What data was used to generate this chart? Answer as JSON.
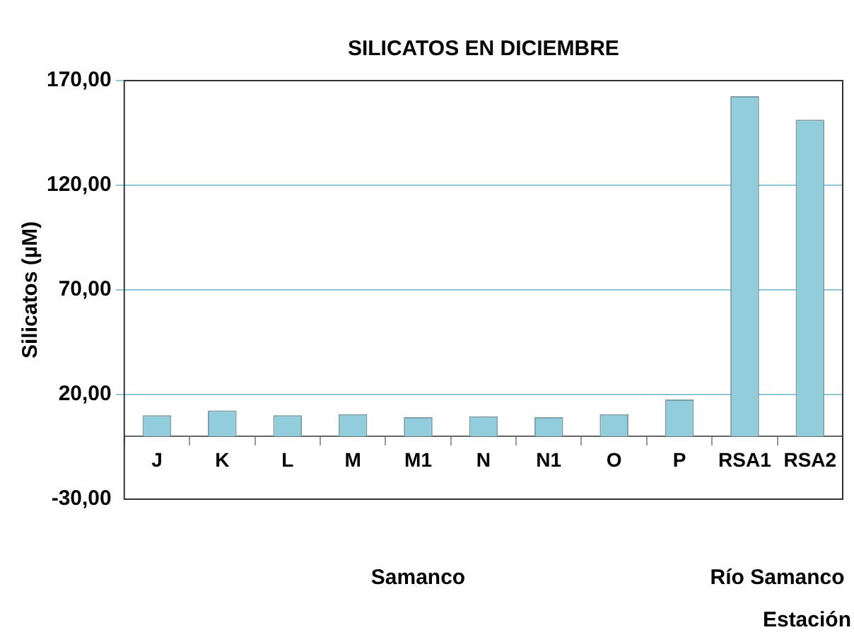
{
  "chart_data": {
    "type": "bar",
    "title": "SILICATOS EN DICIEMBRE",
    "ylabel": "Silicatos (µM)",
    "xlabel": "Estación",
    "categories": [
      "J",
      "K",
      "L",
      "M",
      "M1",
      "N",
      "N1",
      "O",
      "P",
      "RSA1",
      "RSA2"
    ],
    "series": [
      {
        "color": "#92cddb",
        "values": [
          10.1,
          12.4,
          10.1,
          10.6,
          9.2,
          9.6,
          9.2,
          10.6,
          17.6,
          162.6,
          151.3
        ]
      }
    ],
    "ylim": [
      -30,
      170
    ],
    "yticks": [
      {
        "value": -30,
        "label": "-30,00"
      },
      {
        "value": 20,
        "label": "20,00"
      },
      {
        "value": 70,
        "label": "70,00"
      },
      {
        "value": 120,
        "label": "120,00"
      },
      {
        "value": 170,
        "label": "170,00"
      }
    ],
    "grid": "y",
    "legend": false,
    "annotations": [
      "Samanco",
      "Río Samanco"
    ]
  }
}
